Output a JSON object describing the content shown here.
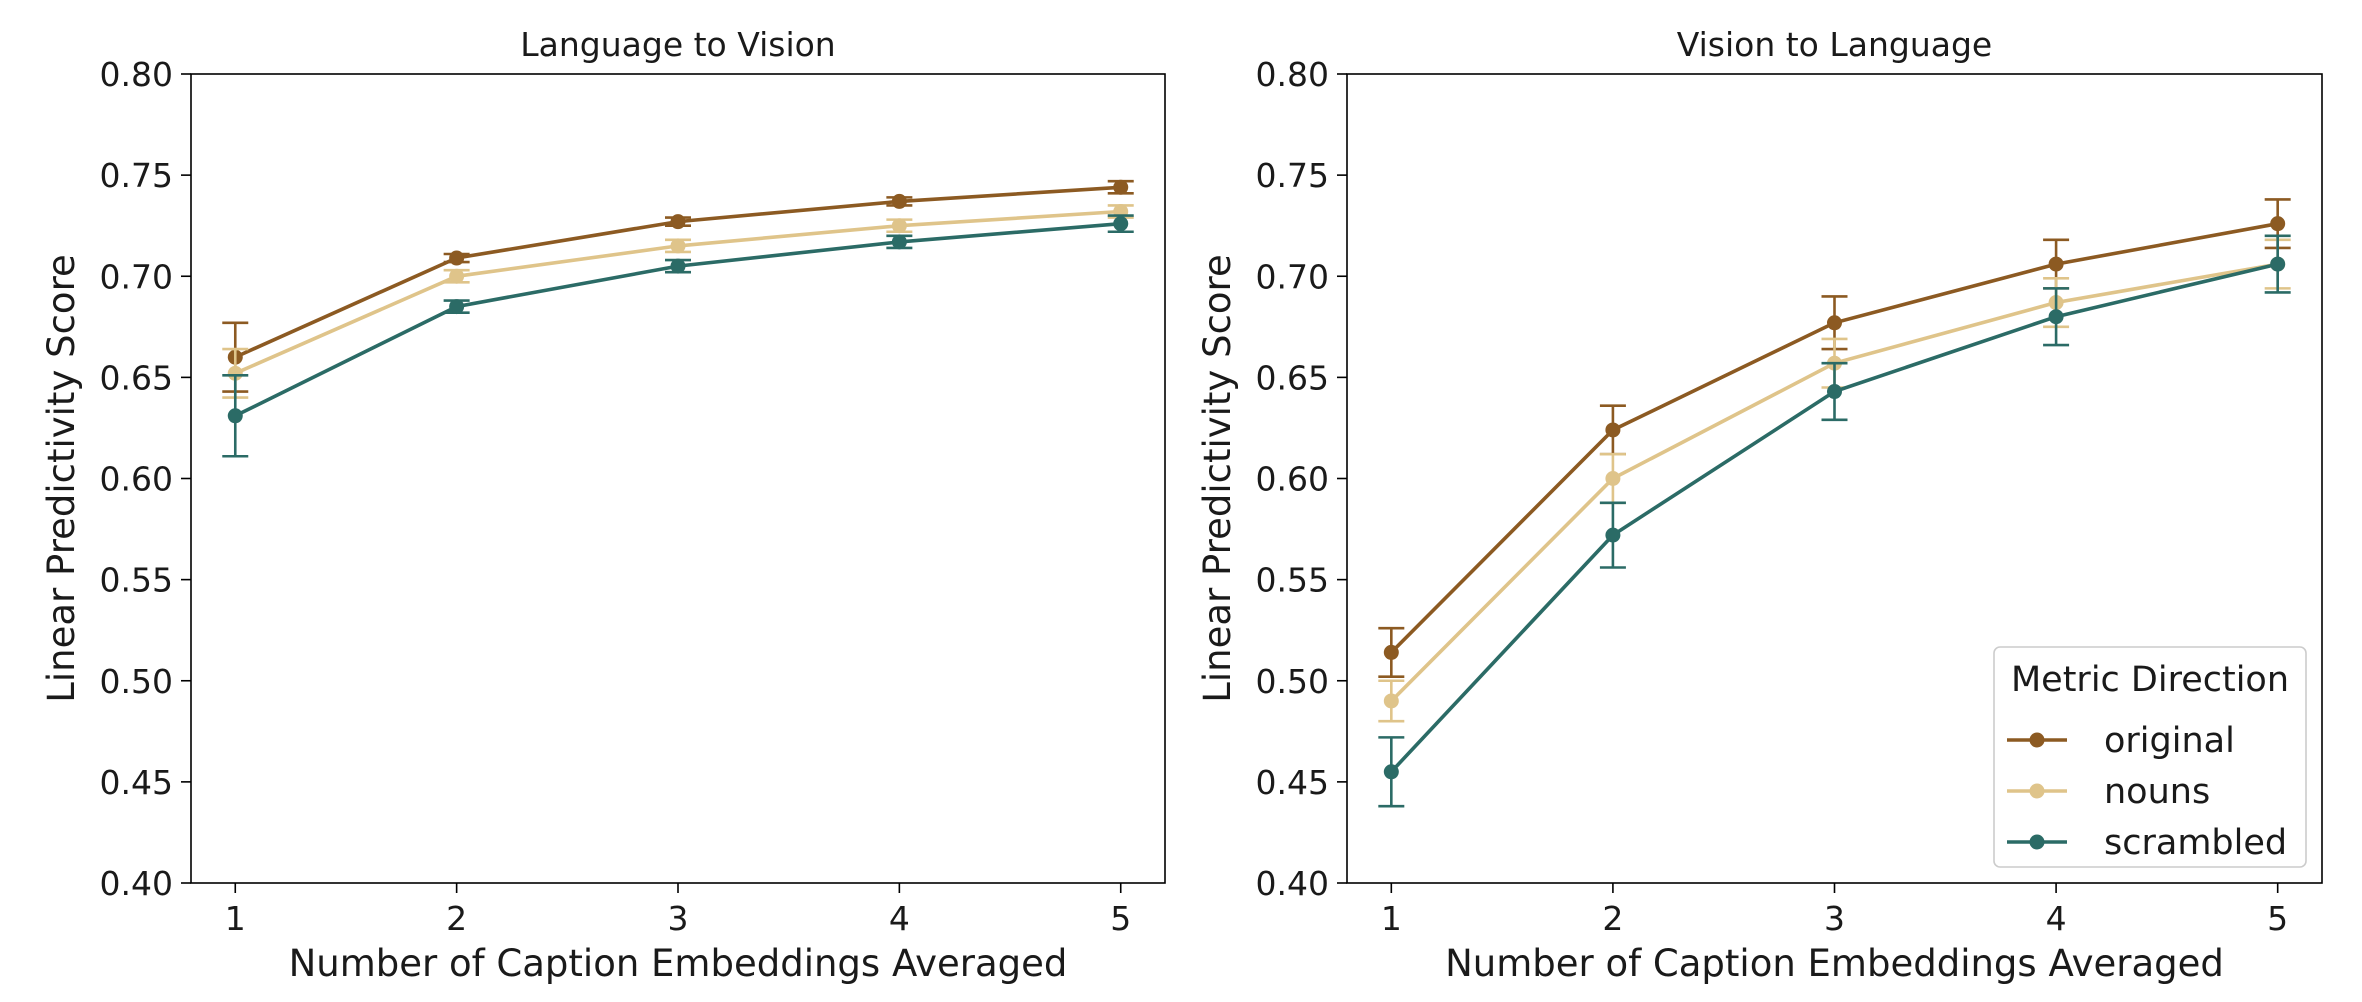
{
  "chart_data": [
    {
      "type": "line",
      "title": "Language to Vision",
      "xlabel": "Number of Caption Embeddings Averaged",
      "ylabel": "Linear Predictivity Score",
      "x": [
        1,
        2,
        3,
        4,
        5
      ],
      "xticks": [
        "1",
        "2",
        "3",
        "4",
        "5"
      ],
      "ylim": [
        0.4,
        0.8
      ],
      "yticks": [
        "0.40",
        "0.45",
        "0.50",
        "0.55",
        "0.60",
        "0.65",
        "0.70",
        "0.75",
        "0.80"
      ],
      "grid": false,
      "legend": null,
      "series": [
        {
          "name": "original",
          "color": "#8c5a22",
          "values": [
            0.66,
            0.709,
            0.727,
            0.737,
            0.744
          ],
          "err": [
            0.017,
            0.002,
            0.002,
            0.002,
            0.003
          ]
        },
        {
          "name": "nouns",
          "color": "#dfc48a",
          "values": [
            0.652,
            0.7,
            0.715,
            0.725,
            0.732
          ],
          "err": [
            0.012,
            0.003,
            0.003,
            0.003,
            0.003
          ]
        },
        {
          "name": "scrambled",
          "color": "#2b6b66",
          "values": [
            0.631,
            0.685,
            0.705,
            0.717,
            0.726
          ],
          "err": [
            0.02,
            0.003,
            0.003,
            0.003,
            0.004
          ]
        }
      ]
    },
    {
      "type": "line",
      "title": "Vision to Language",
      "xlabel": "Number of Caption Embeddings Averaged",
      "ylabel": "Linear Predictivity Score",
      "x": [
        1,
        2,
        3,
        4,
        5
      ],
      "xticks": [
        "1",
        "2",
        "3",
        "4",
        "5"
      ],
      "ylim": [
        0.4,
        0.8
      ],
      "yticks": [
        "0.40",
        "0.45",
        "0.50",
        "0.55",
        "0.60",
        "0.65",
        "0.70",
        "0.75",
        "0.80"
      ],
      "grid": false,
      "legend": "lower-right",
      "legend_title": "Metric Direction",
      "series": [
        {
          "name": "original",
          "color": "#8c5a22",
          "values": [
            0.514,
            0.624,
            0.677,
            0.706,
            0.726
          ],
          "err": [
            0.012,
            0.012,
            0.013,
            0.012,
            0.012
          ]
        },
        {
          "name": "nouns",
          "color": "#dfc48a",
          "values": [
            0.49,
            0.6,
            0.657,
            0.687,
            0.706
          ],
          "err": [
            0.01,
            0.012,
            0.012,
            0.012,
            0.012
          ]
        },
        {
          "name": "scrambled",
          "color": "#2b6b66",
          "values": [
            0.455,
            0.572,
            0.643,
            0.68,
            0.706
          ],
          "err": [
            0.017,
            0.016,
            0.014,
            0.014,
            0.014
          ]
        }
      ]
    }
  ]
}
